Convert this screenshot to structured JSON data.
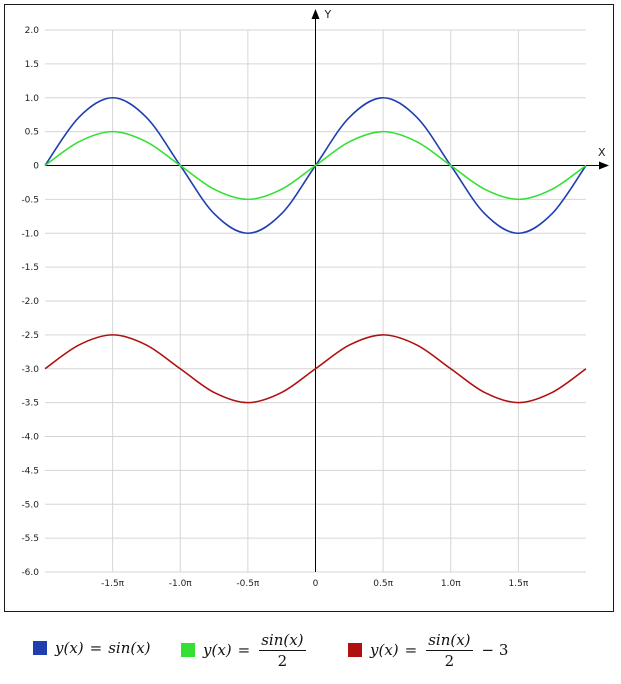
{
  "chart_data": {
    "type": "line",
    "x_axis_label": "X",
    "y_axis_label": "Y",
    "xlim": [
      -2.0,
      2.0
    ],
    "x_unit": "π",
    "ylim": [
      -6.0,
      2.0
    ],
    "grid": true,
    "legend_position": "bottom",
    "x_ticks": [
      "-1.5π",
      "-1.0π",
      "-0.5π",
      "0",
      "0.5π",
      "1.0π",
      "1.5π"
    ],
    "x_tick_values": [
      -1.5,
      -1.0,
      -0.5,
      0,
      0.5,
      1.0,
      1.5
    ],
    "y_ticks": [
      "2.0",
      "1.5",
      "1.0",
      "0.5",
      "0",
      "-0.5",
      "-1.0",
      "-1.5",
      "-2.0",
      "-2.5",
      "-3.0",
      "-3.5",
      "-4.0",
      "-4.5",
      "-5.0",
      "-5.5",
      "-6.0"
    ],
    "y_tick_values": [
      2.0,
      1.5,
      1.0,
      0.5,
      0,
      -0.5,
      -1.0,
      -1.5,
      -2.0,
      -2.5,
      -3.0,
      -3.5,
      -4.0,
      -4.5,
      -5.0,
      -5.5,
      -6.0
    ],
    "series": [
      {
        "name": "y(x) = sin(x)",
        "color": "#1f3fb0",
        "x": [
          -2.0,
          -1.75,
          -1.5,
          -1.25,
          -1.0,
          -0.75,
          -0.5,
          -0.25,
          0,
          0.25,
          0.5,
          0.75,
          1.0,
          1.25,
          1.5,
          1.75,
          2.0
        ],
        "y": [
          0,
          0.71,
          1.0,
          0.71,
          0,
          -0.71,
          -1.0,
          -0.71,
          0,
          0.71,
          1.0,
          0.71,
          0,
          -0.71,
          -1.0,
          -0.71,
          0
        ]
      },
      {
        "name": "y(x) = sin(x)/2",
        "color": "#33e033",
        "x": [
          -2.0,
          -1.75,
          -1.5,
          -1.25,
          -1.0,
          -0.75,
          -0.5,
          -0.25,
          0,
          0.25,
          0.5,
          0.75,
          1.0,
          1.25,
          1.5,
          1.75,
          2.0
        ],
        "y": [
          0,
          0.35,
          0.5,
          0.35,
          0,
          -0.35,
          -0.5,
          -0.35,
          0,
          0.35,
          0.5,
          0.35,
          0,
          -0.35,
          -0.5,
          -0.35,
          0
        ]
      },
      {
        "name": "y(x) = sin(x)/2 − 3",
        "color": "#b01010",
        "x": [
          -2.0,
          -1.75,
          -1.5,
          -1.25,
          -1.0,
          -0.75,
          -0.5,
          -0.25,
          0,
          0.25,
          0.5,
          0.75,
          1.0,
          1.25,
          1.5,
          1.75,
          2.0
        ],
        "y": [
          -3.0,
          -2.65,
          -2.5,
          -2.65,
          -3.0,
          -3.35,
          -3.5,
          -3.35,
          -3.0,
          -2.65,
          -2.5,
          -2.65,
          -3.0,
          -3.35,
          -3.5,
          -3.35,
          -3.0
        ]
      }
    ]
  },
  "legend": {
    "items": [
      {
        "color": "#1f3fb0",
        "lhs": "y(x)",
        "eq": "=",
        "func": "sin(x)"
      },
      {
        "color": "#33e033",
        "lhs": "y(x)",
        "eq": "=",
        "num": "sin(x)",
        "den": "2"
      },
      {
        "color": "#b01010",
        "lhs": "y(x)",
        "eq": "=",
        "num": "sin(x)",
        "den": "2",
        "tail": "− 3"
      }
    ]
  }
}
